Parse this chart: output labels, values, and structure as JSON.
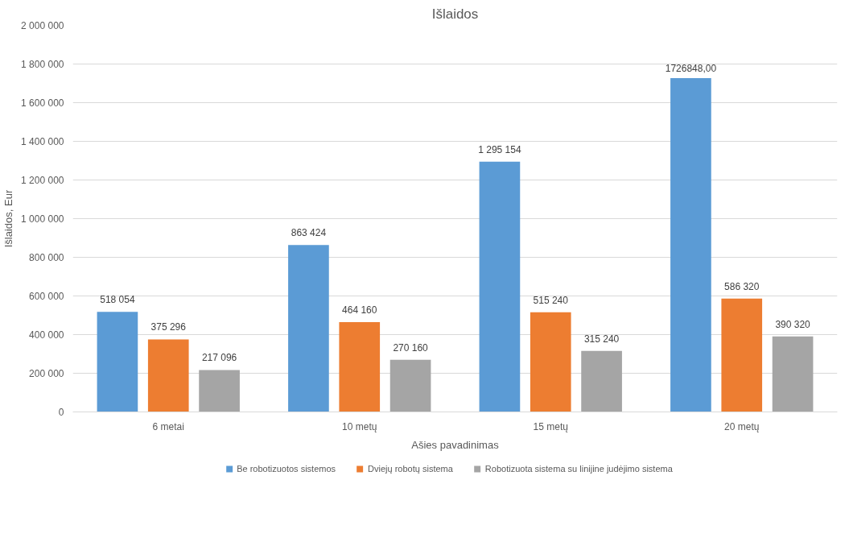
{
  "chart_data": {
    "type": "bar",
    "title": "Išlaidos",
    "xlabel": "Ašies pavadinimas",
    "ylabel": "Išlaidos, Eur",
    "categories": [
      "6 metai",
      "10 metų",
      "15 metų",
      "20 metų"
    ],
    "series": [
      {
        "name": "Be robotizuotos sistemos",
        "color": "#5b9bd5",
        "values": [
          518054,
          863424,
          1295154,
          1726848
        ],
        "value_labels": [
          "518 054",
          "863 424",
          "1 295 154",
          "1726848,00"
        ]
      },
      {
        "name": "Dviejų robotų sistema",
        "color": "#ed7d31",
        "values": [
          375296,
          464160,
          515240,
          586320
        ],
        "value_labels": [
          "375 296",
          "464 160",
          "515 240",
          "586 320"
        ]
      },
      {
        "name": "Robotizuota sistema su linijine judėjimo sistema",
        "color": "#a5a5a5",
        "values": [
          217096,
          270160,
          315240,
          390320
        ],
        "value_labels": [
          "217 096",
          "270 160",
          "315 240",
          "390 320"
        ]
      }
    ],
    "ylim": [
      0,
      2000000
    ],
    "yticks": [
      {
        "value": 0,
        "label": "0"
      },
      {
        "value": 200000,
        "label": "200 000"
      },
      {
        "value": 400000,
        "label": "400 000"
      },
      {
        "value": 600000,
        "label": "600 000"
      },
      {
        "value": 800000,
        "label": "800 000"
      },
      {
        "value": 1000000,
        "label": "1 000 000"
      },
      {
        "value": 1200000,
        "label": "1 200 000"
      },
      {
        "value": 1400000,
        "label": "1 400 000"
      },
      {
        "value": 1600000,
        "label": "1 600 000"
      },
      {
        "value": 1800000,
        "label": "1 800 000"
      },
      {
        "value": 2000000,
        "label": "2 000 000"
      }
    ],
    "grid": "y",
    "legend": "bottom"
  }
}
